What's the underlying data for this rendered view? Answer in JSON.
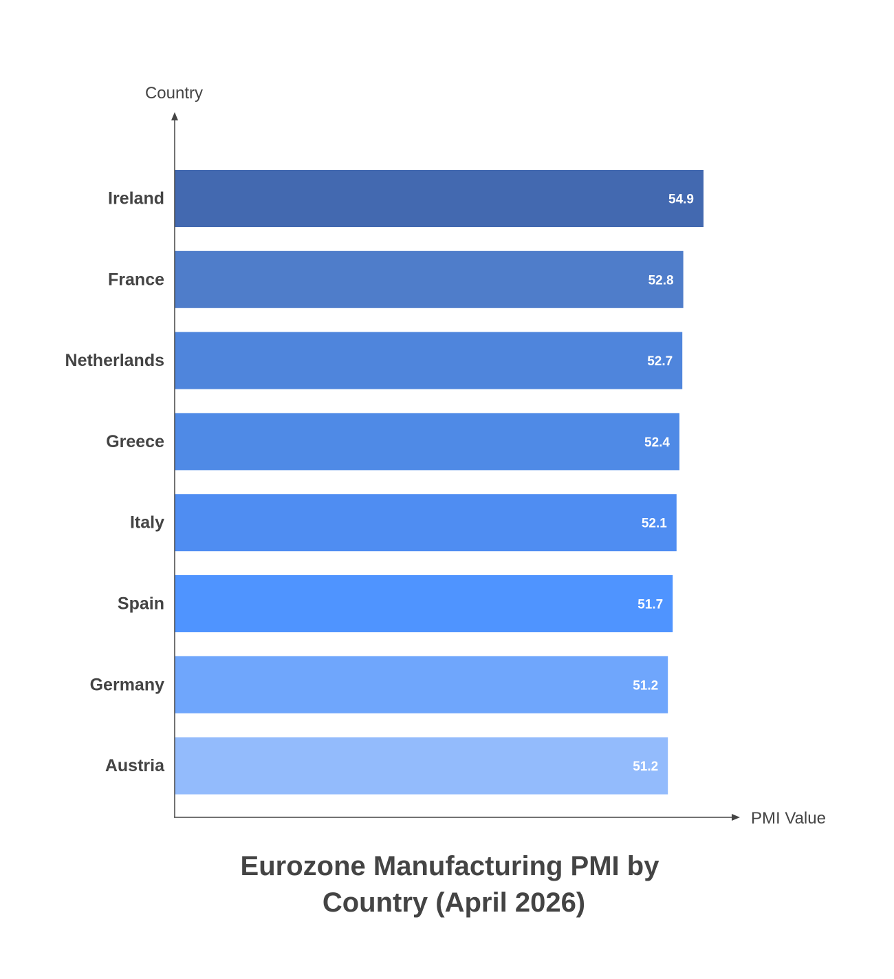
{
  "chart_data": {
    "type": "bar",
    "orientation": "horizontal",
    "title": [
      "Eurozone Manufacturing PMI by",
      "Country (April 2026)"
    ],
    "xlabel": "PMI Value",
    "ylabel": "Country",
    "categories": [
      "Ireland",
      "France",
      "Netherlands",
      "Greece",
      "Italy",
      "Spain",
      "Germany",
      "Austria"
    ],
    "values": [
      54.9,
      52.8,
      52.7,
      52.4,
      52.1,
      51.7,
      51.2,
      51.2
    ],
    "value_labels": [
      "54.9",
      "52.8",
      "52.7",
      "52.4",
      "52.1",
      "51.7",
      "51.2",
      "51.2"
    ],
    "colors": [
      "#4369B0",
      "#4F7DCA",
      "#4F85DC",
      "#4F8AE6",
      "#4F8DF2",
      "#4F94FF",
      "#6FA6FC",
      "#93BBFC"
    ],
    "xlim": [
      0,
      54.9
    ],
    "grid": false,
    "legend": "none"
  }
}
